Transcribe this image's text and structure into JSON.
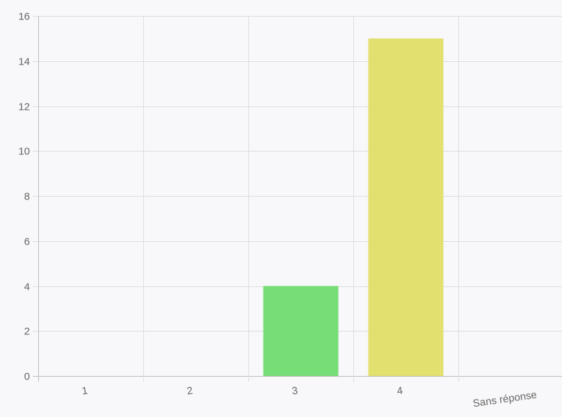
{
  "chart_data": {
    "type": "bar",
    "categories": [
      "1",
      "2",
      "3",
      "4",
      "Sans réponse"
    ],
    "values": [
      0,
      0,
      4,
      15,
      0
    ],
    "bar_colors": [
      "#7bd77b",
      "#7bd77b",
      "#77dd77",
      "#e2e06e",
      "#cccccc"
    ],
    "ylim": [
      0,
      16
    ],
    "yticks": [
      "0",
      "2",
      "4",
      "6",
      "8",
      "10",
      "12",
      "14",
      "16"
    ],
    "grid": true,
    "legend": "none",
    "title": "",
    "xlabel": "",
    "ylabel": ""
  },
  "colors": {
    "background": "#f8f8fa",
    "grid": "#dddddd",
    "axis": "#bbbbbb",
    "tick_text": "#666666"
  }
}
